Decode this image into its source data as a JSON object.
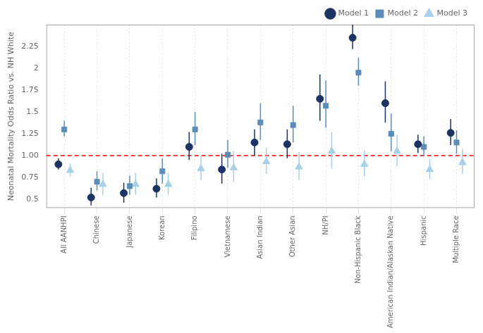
{
  "chart_data": {
    "type": "scatter",
    "categories": [
      "All AANHPI",
      "Chinese",
      "Japanese",
      "Korean",
      "Filipino",
      "Vietnamese",
      "Asian Indian",
      "Other Asian",
      "NH/PI",
      "Non-Hispanic Black",
      "American Indian/Alaskan Native",
      "Hispanic",
      "Multiple Race"
    ],
    "series": [
      {
        "name": "Model 1",
        "color": "#1c3461",
        "marker": "circle",
        "values": [
          0.9,
          0.52,
          0.57,
          0.62,
          1.1,
          0.84,
          1.15,
          1.13,
          1.65,
          2.35,
          1.6,
          1.13,
          1.26
        ],
        "ci_low": [
          0.84,
          0.43,
          0.46,
          0.52,
          0.95,
          0.68,
          1.0,
          0.97,
          1.4,
          2.22,
          1.38,
          1.03,
          1.12
        ],
        "ci_high": [
          0.97,
          0.63,
          0.69,
          0.74,
          1.27,
          1.02,
          1.3,
          1.3,
          1.93,
          2.5,
          1.85,
          1.24,
          1.42
        ]
      },
      {
        "name": "Model 2",
        "color": "#5b8db8",
        "marker": "square",
        "values": [
          1.3,
          0.7,
          0.65,
          0.82,
          1.3,
          1.01,
          1.38,
          1.35,
          1.57,
          1.95,
          1.25,
          1.1,
          1.15
        ],
        "ci_low": [
          1.22,
          0.6,
          0.55,
          0.68,
          1.12,
          0.86,
          1.18,
          1.15,
          1.32,
          1.8,
          1.05,
          0.99,
          1.02
        ],
        "ci_high": [
          1.4,
          0.82,
          0.77,
          0.97,
          1.5,
          1.18,
          1.6,
          1.57,
          1.86,
          2.12,
          1.48,
          1.22,
          1.29
        ]
      },
      {
        "name": "Model 3",
        "color": "#a8d0e8",
        "marker": "triangle",
        "values": [
          0.83,
          0.67,
          0.67,
          0.67,
          0.85,
          0.86,
          0.93,
          0.87,
          1.05,
          0.9,
          1.05,
          0.84,
          0.92
        ],
        "ci_low": [
          0.76,
          0.55,
          0.55,
          0.55,
          0.72,
          0.7,
          0.79,
          0.72,
          0.85,
          0.76,
          0.88,
          0.73,
          0.79
        ],
        "ci_high": [
          0.91,
          0.8,
          0.8,
          0.8,
          1.0,
          1.05,
          1.09,
          1.04,
          1.27,
          1.06,
          1.24,
          0.96,
          1.07
        ]
      }
    ],
    "ylabel": "Neonatal Mortality Odds Ratio vs. NH White",
    "ylim": [
      0.4,
      2.5
    ],
    "yticks": [
      0.5,
      0.75,
      {
        "value": 1,
        "label": "1.00"
      },
      1.25,
      1.5,
      1.75,
      2,
      2.25
    ],
    "ref_line": 1,
    "grid": "x",
    "legend": "upper right"
  }
}
